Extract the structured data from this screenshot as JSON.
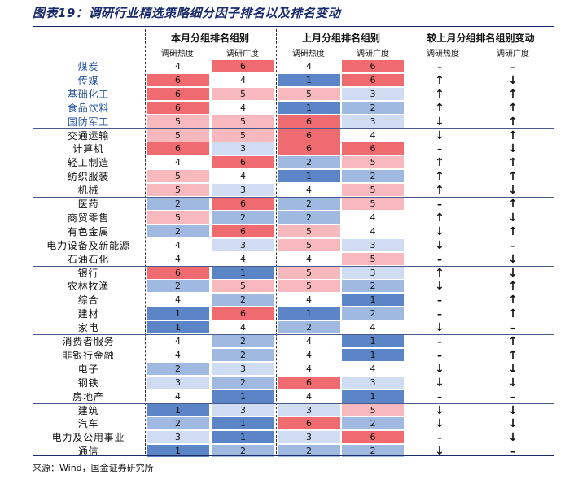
{
  "title": "图表19：调研行业精选策略细分因子排名以及排名变动",
  "headers": {
    "group_current": "本月分组排名组别",
    "group_last": "上月分组排名组别",
    "group_change": "较上月分组排名组别变动",
    "heat": "调研热度",
    "breadth": "调研广度"
  },
  "colors": {
    "1": "#5b85c7",
    "2": "#9fb9e1",
    "3": "#cfdcf1",
    "4": "#ffffff",
    "5": "#f7b9bd",
    "6": "#f06b6f"
  },
  "rows": [
    {
      "industry": "煤炭",
      "highlight": true,
      "cur_heat": "4",
      "cur_breadth": "6",
      "last_heat": "4",
      "last_breadth": "6",
      "chg_heat": "–",
      "chg_breadth": "–"
    },
    {
      "industry": "传媒",
      "highlight": true,
      "cur_heat": "6",
      "cur_breadth": "4",
      "last_heat": "1",
      "last_breadth": "6",
      "chg_heat": "↑",
      "chg_breadth": "↓"
    },
    {
      "industry": "基础化工",
      "highlight": true,
      "cur_heat": "6",
      "cur_breadth": "5",
      "last_heat": "5",
      "last_breadth": "3",
      "chg_heat": "↑",
      "chg_breadth": "↑"
    },
    {
      "industry": "食品饮料",
      "highlight": true,
      "cur_heat": "6",
      "cur_breadth": "4",
      "last_heat": "1",
      "last_breadth": "2",
      "chg_heat": "↑",
      "chg_breadth": "↑"
    },
    {
      "industry": "国防军工",
      "highlight": true,
      "cur_heat": "5",
      "cur_breadth": "5",
      "last_heat": "6",
      "last_breadth": "3",
      "chg_heat": "↓",
      "chg_breadth": "↑"
    },
    {
      "industry": "交通运输",
      "highlight": false,
      "cur_heat": "5",
      "cur_breadth": "5",
      "last_heat": "6",
      "last_breadth": "4",
      "chg_heat": "↓",
      "chg_breadth": "↑"
    },
    {
      "industry": "计算机",
      "highlight": false,
      "cur_heat": "6",
      "cur_breadth": "3",
      "last_heat": "6",
      "last_breadth": "6",
      "chg_heat": "–",
      "chg_breadth": "↓"
    },
    {
      "industry": "轻工制造",
      "highlight": false,
      "cur_heat": "4",
      "cur_breadth": "6",
      "last_heat": "2",
      "last_breadth": "5",
      "chg_heat": "↑",
      "chg_breadth": "↑"
    },
    {
      "industry": "纺织服装",
      "highlight": false,
      "cur_heat": "5",
      "cur_breadth": "4",
      "last_heat": "1",
      "last_breadth": "2",
      "chg_heat": "↑",
      "chg_breadth": "↑"
    },
    {
      "industry": "机械",
      "highlight": false,
      "cur_heat": "5",
      "cur_breadth": "3",
      "last_heat": "4",
      "last_breadth": "5",
      "chg_heat": "↑",
      "chg_breadth": "↓"
    },
    {
      "industry": "医药",
      "highlight": false,
      "cur_heat": "2",
      "cur_breadth": "6",
      "last_heat": "2",
      "last_breadth": "5",
      "chg_heat": "–",
      "chg_breadth": "↑"
    },
    {
      "industry": "商贸零售",
      "highlight": false,
      "cur_heat": "5",
      "cur_breadth": "2",
      "last_heat": "2",
      "last_breadth": "4",
      "chg_heat": "↑",
      "chg_breadth": "↓"
    },
    {
      "industry": "有色金属",
      "highlight": false,
      "cur_heat": "2",
      "cur_breadth": "6",
      "last_heat": "5",
      "last_breadth": "4",
      "chg_heat": "↓",
      "chg_breadth": "↑"
    },
    {
      "industry": "电力设备及新能源",
      "highlight": false,
      "cur_heat": "4",
      "cur_breadth": "3",
      "last_heat": "5",
      "last_breadth": "3",
      "chg_heat": "↓",
      "chg_breadth": "–"
    },
    {
      "industry": "石油石化",
      "highlight": false,
      "cur_heat": "4",
      "cur_breadth": "4",
      "last_heat": "4",
      "last_breadth": "5",
      "chg_heat": "–",
      "chg_breadth": "↓"
    },
    {
      "industry": "银行",
      "highlight": false,
      "cur_heat": "6",
      "cur_breadth": "1",
      "last_heat": "5",
      "last_breadth": "3",
      "chg_heat": "↑",
      "chg_breadth": "↓"
    },
    {
      "industry": "农林牧渔",
      "highlight": false,
      "cur_heat": "2",
      "cur_breadth": "5",
      "last_heat": "5",
      "last_breadth": "2",
      "chg_heat": "↓",
      "chg_breadth": "↑"
    },
    {
      "industry": "综合",
      "highlight": false,
      "cur_heat": "4",
      "cur_breadth": "2",
      "last_heat": "4",
      "last_breadth": "1",
      "chg_heat": "–",
      "chg_breadth": "↑"
    },
    {
      "industry": "建材",
      "highlight": false,
      "cur_heat": "1",
      "cur_breadth": "6",
      "last_heat": "1",
      "last_breadth": "2",
      "chg_heat": "–",
      "chg_breadth": "↑"
    },
    {
      "industry": "家电",
      "highlight": false,
      "cur_heat": "1",
      "cur_breadth": "4",
      "last_heat": "2",
      "last_breadth": "4",
      "chg_heat": "↓",
      "chg_breadth": "–"
    },
    {
      "industry": "消费者服务",
      "highlight": false,
      "cur_heat": "4",
      "cur_breadth": "2",
      "last_heat": "4",
      "last_breadth": "1",
      "chg_heat": "–",
      "chg_breadth": "↑"
    },
    {
      "industry": "非银行金融",
      "highlight": false,
      "cur_heat": "4",
      "cur_breadth": "2",
      "last_heat": "4",
      "last_breadth": "1",
      "chg_heat": "–",
      "chg_breadth": "↑"
    },
    {
      "industry": "电子",
      "highlight": false,
      "cur_heat": "2",
      "cur_breadth": "3",
      "last_heat": "4",
      "last_breadth": "4",
      "chg_heat": "↓",
      "chg_breadth": "↓"
    },
    {
      "industry": "钢铁",
      "highlight": false,
      "cur_heat": "3",
      "cur_breadth": "2",
      "last_heat": "6",
      "last_breadth": "3",
      "chg_heat": "↓",
      "chg_breadth": "↓"
    },
    {
      "industry": "房地产",
      "highlight": false,
      "cur_heat": "4",
      "cur_breadth": "1",
      "last_heat": "4",
      "last_breadth": "1",
      "chg_heat": "–",
      "chg_breadth": "–"
    },
    {
      "industry": "建筑",
      "highlight": false,
      "cur_heat": "1",
      "cur_breadth": "3",
      "last_heat": "3",
      "last_breadth": "5",
      "chg_heat": "↓",
      "chg_breadth": "↓"
    },
    {
      "industry": "汽车",
      "highlight": false,
      "cur_heat": "2",
      "cur_breadth": "1",
      "last_heat": "6",
      "last_breadth": "2",
      "chg_heat": "↓",
      "chg_breadth": "↓"
    },
    {
      "industry": "电力及公用事业",
      "highlight": false,
      "cur_heat": "3",
      "cur_breadth": "1",
      "last_heat": "3",
      "last_breadth": "6",
      "chg_heat": "–",
      "chg_breadth": "↓"
    },
    {
      "industry": "通信",
      "highlight": false,
      "cur_heat": "1",
      "cur_breadth": "2",
      "last_heat": "2",
      "last_breadth": "2",
      "chg_heat": "↓",
      "chg_breadth": "–"
    }
  ],
  "source": "来源：Wind，国金证券研究所"
}
